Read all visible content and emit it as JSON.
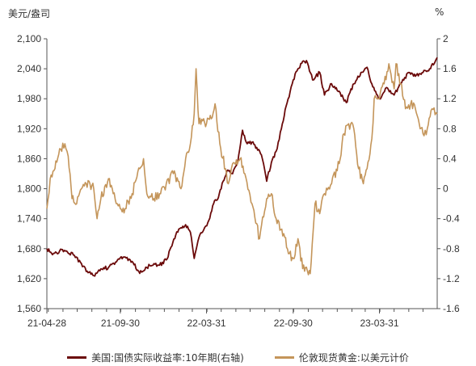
{
  "chart_data": {
    "type": "line",
    "left_axis_unit": "美元/盎司",
    "right_axis_unit": "%",
    "left_ticks": [
      "1,560",
      "1,620",
      "1,680",
      "1,740",
      "1,800",
      "1,860",
      "1,920",
      "1,980",
      "2,040",
      "2,100"
    ],
    "right_ticks": [
      "-1.6",
      "-1.2",
      "-0.8",
      "-0.4",
      "0",
      "0.4",
      "0.8",
      "1.2",
      "1.6",
      "2"
    ],
    "x_ticks": [
      "21-04-28",
      "21-09-30",
      "22-03-31",
      "22-09-30",
      "23-03-31"
    ],
    "left_ylim": [
      1560,
      2100
    ],
    "right_ylim": [
      -1.6,
      2.0
    ],
    "x_range": [
      "2021-04-28",
      "2023-07-31"
    ],
    "series": [
      {
        "name": "美国:国债实际收益率:10年期(右轴)",
        "axis": "right",
        "color": "#6b0a0a",
        "points": [
          [
            "2021-04-28",
            -0.8
          ],
          [
            "2021-05-10",
            -0.88
          ],
          [
            "2021-05-25",
            -0.83
          ],
          [
            "2021-06-10",
            -0.84
          ],
          [
            "2021-06-25",
            -0.89
          ],
          [
            "2021-07-10",
            -1.0
          ],
          [
            "2021-07-22",
            -1.1
          ],
          [
            "2021-08-05",
            -1.16
          ],
          [
            "2021-08-20",
            -1.07
          ],
          [
            "2021-09-05",
            -1.05
          ],
          [
            "2021-09-20",
            -0.98
          ],
          [
            "2021-09-30",
            -0.92
          ],
          [
            "2021-10-10",
            -0.91
          ],
          [
            "2021-10-25",
            -0.97
          ],
          [
            "2021-11-10",
            -1.13
          ],
          [
            "2021-11-25",
            -1.05
          ],
          [
            "2021-12-10",
            -1.0
          ],
          [
            "2021-12-22",
            -1.02
          ],
          [
            "2022-01-05",
            -0.95
          ],
          [
            "2022-01-15",
            -0.78
          ],
          [
            "2022-01-25",
            -0.62
          ],
          [
            "2022-02-05",
            -0.52
          ],
          [
            "2022-02-15",
            -0.48
          ],
          [
            "2022-02-25",
            -0.58
          ],
          [
            "2022-03-05",
            -0.93
          ],
          [
            "2022-03-15",
            -0.65
          ],
          [
            "2022-03-25",
            -0.55
          ],
          [
            "2022-04-05",
            -0.42
          ],
          [
            "2022-04-15",
            -0.2
          ],
          [
            "2022-04-25",
            -0.12
          ],
          [
            "2022-05-05",
            0.1
          ],
          [
            "2022-05-15",
            0.25
          ],
          [
            "2022-05-25",
            0.2
          ],
          [
            "2022-06-05",
            0.35
          ],
          [
            "2022-06-15",
            0.78
          ],
          [
            "2022-06-25",
            0.6
          ],
          [
            "2022-07-05",
            0.62
          ],
          [
            "2022-07-15",
            0.55
          ],
          [
            "2022-07-25",
            0.45
          ],
          [
            "2022-08-05",
            0.1
          ],
          [
            "2022-08-15",
            0.35
          ],
          [
            "2022-08-25",
            0.5
          ],
          [
            "2022-09-05",
            0.8
          ],
          [
            "2022-09-15",
            1.1
          ],
          [
            "2022-09-30",
            1.45
          ],
          [
            "2022-10-10",
            1.6
          ],
          [
            "2022-10-20",
            1.7
          ],
          [
            "2022-10-30",
            1.68
          ],
          [
            "2022-11-10",
            1.45
          ],
          [
            "2022-11-25",
            1.55
          ],
          [
            "2022-12-05",
            1.25
          ],
          [
            "2022-12-20",
            1.4
          ],
          [
            "2023-01-05",
            1.3
          ],
          [
            "2023-01-20",
            1.15
          ],
          [
            "2023-02-05",
            1.4
          ],
          [
            "2023-02-20",
            1.55
          ],
          [
            "2023-03-05",
            1.62
          ],
          [
            "2023-03-15",
            1.4
          ],
          [
            "2023-03-31",
            1.2
          ],
          [
            "2023-04-15",
            1.35
          ],
          [
            "2023-05-01",
            1.25
          ],
          [
            "2023-05-15",
            1.4
          ],
          [
            "2023-06-01",
            1.55
          ],
          [
            "2023-06-15",
            1.5
          ],
          [
            "2023-07-01",
            1.55
          ],
          [
            "2023-07-15",
            1.6
          ],
          [
            "2023-07-31",
            1.75
          ]
        ]
      },
      {
        "name": "伦敦现货黄金:以美元计价",
        "axis": "left",
        "color": "#c4955a",
        "points": [
          [
            "2021-04-28",
            1760
          ],
          [
            "2021-05-05",
            1820
          ],
          [
            "2021-05-15",
            1840
          ],
          [
            "2021-05-25",
            1880
          ],
          [
            "2021-06-05",
            1890
          ],
          [
            "2021-06-12",
            1865
          ],
          [
            "2021-06-20",
            1780
          ],
          [
            "2021-06-30",
            1770
          ],
          [
            "2021-07-10",
            1800
          ],
          [
            "2021-07-20",
            1810
          ],
          [
            "2021-08-05",
            1800
          ],
          [
            "2021-08-12",
            1740
          ],
          [
            "2021-08-20",
            1780
          ],
          [
            "2021-09-05",
            1820
          ],
          [
            "2021-09-15",
            1790
          ],
          [
            "2021-09-30",
            1760
          ],
          [
            "2021-10-10",
            1760
          ],
          [
            "2021-10-25",
            1790
          ],
          [
            "2021-11-10",
            1840
          ],
          [
            "2021-11-18",
            1860
          ],
          [
            "2021-11-25",
            1790
          ],
          [
            "2021-12-10",
            1780
          ],
          [
            "2021-12-22",
            1790
          ],
          [
            "2022-01-05",
            1810
          ],
          [
            "2022-01-20",
            1830
          ],
          [
            "2022-02-05",
            1800
          ],
          [
            "2022-02-15",
            1860
          ],
          [
            "2022-02-25",
            1890
          ],
          [
            "2022-03-05",
            1950
          ],
          [
            "2022-03-09",
            2040
          ],
          [
            "2022-03-15",
            1930
          ],
          [
            "2022-03-25",
            1940
          ],
          [
            "2022-03-31",
            1930
          ],
          [
            "2022-04-10",
            1940
          ],
          [
            "2022-04-18",
            1970
          ],
          [
            "2022-04-28",
            1890
          ],
          [
            "2022-05-10",
            1840
          ],
          [
            "2022-05-16",
            1810
          ],
          [
            "2022-05-25",
            1850
          ],
          [
            "2022-06-10",
            1860
          ],
          [
            "2022-06-20",
            1830
          ],
          [
            "2022-07-05",
            1770
          ],
          [
            "2022-07-21",
            1700
          ],
          [
            "2022-08-05",
            1780
          ],
          [
            "2022-08-15",
            1790
          ],
          [
            "2022-08-25",
            1740
          ],
          [
            "2022-09-10",
            1710
          ],
          [
            "2022-09-20",
            1670
          ],
          [
            "2022-09-30",
            1660
          ],
          [
            "2022-10-10",
            1700
          ],
          [
            "2022-10-20",
            1640
          ],
          [
            "2022-11-05",
            1630
          ],
          [
            "2022-11-15",
            1770
          ],
          [
            "2022-11-25",
            1750
          ],
          [
            "2022-12-05",
            1790
          ],
          [
            "2022-12-20",
            1810
          ],
          [
            "2023-01-05",
            1850
          ],
          [
            "2023-01-15",
            1910
          ],
          [
            "2023-01-25",
            1930
          ],
          [
            "2023-02-05",
            1920
          ],
          [
            "2023-02-15",
            1840
          ],
          [
            "2023-02-25",
            1810
          ],
          [
            "2023-03-05",
            1840
          ],
          [
            "2023-03-15",
            1900
          ],
          [
            "2023-03-20",
            1980
          ],
          [
            "2023-03-31",
            1980
          ],
          [
            "2023-04-10",
            2010
          ],
          [
            "2023-04-20",
            2050
          ],
          [
            "2023-05-01",
            2000
          ],
          [
            "2023-05-05",
            2050
          ],
          [
            "2023-05-15",
            2010
          ],
          [
            "2023-05-25",
            1960
          ],
          [
            "2023-06-05",
            1970
          ],
          [
            "2023-06-15",
            1960
          ],
          [
            "2023-06-25",
            1920
          ],
          [
            "2023-07-01",
            1910
          ],
          [
            "2023-07-10",
            1920
          ],
          [
            "2023-07-20",
            1960
          ],
          [
            "2023-07-31",
            1950
          ]
        ]
      }
    ]
  }
}
